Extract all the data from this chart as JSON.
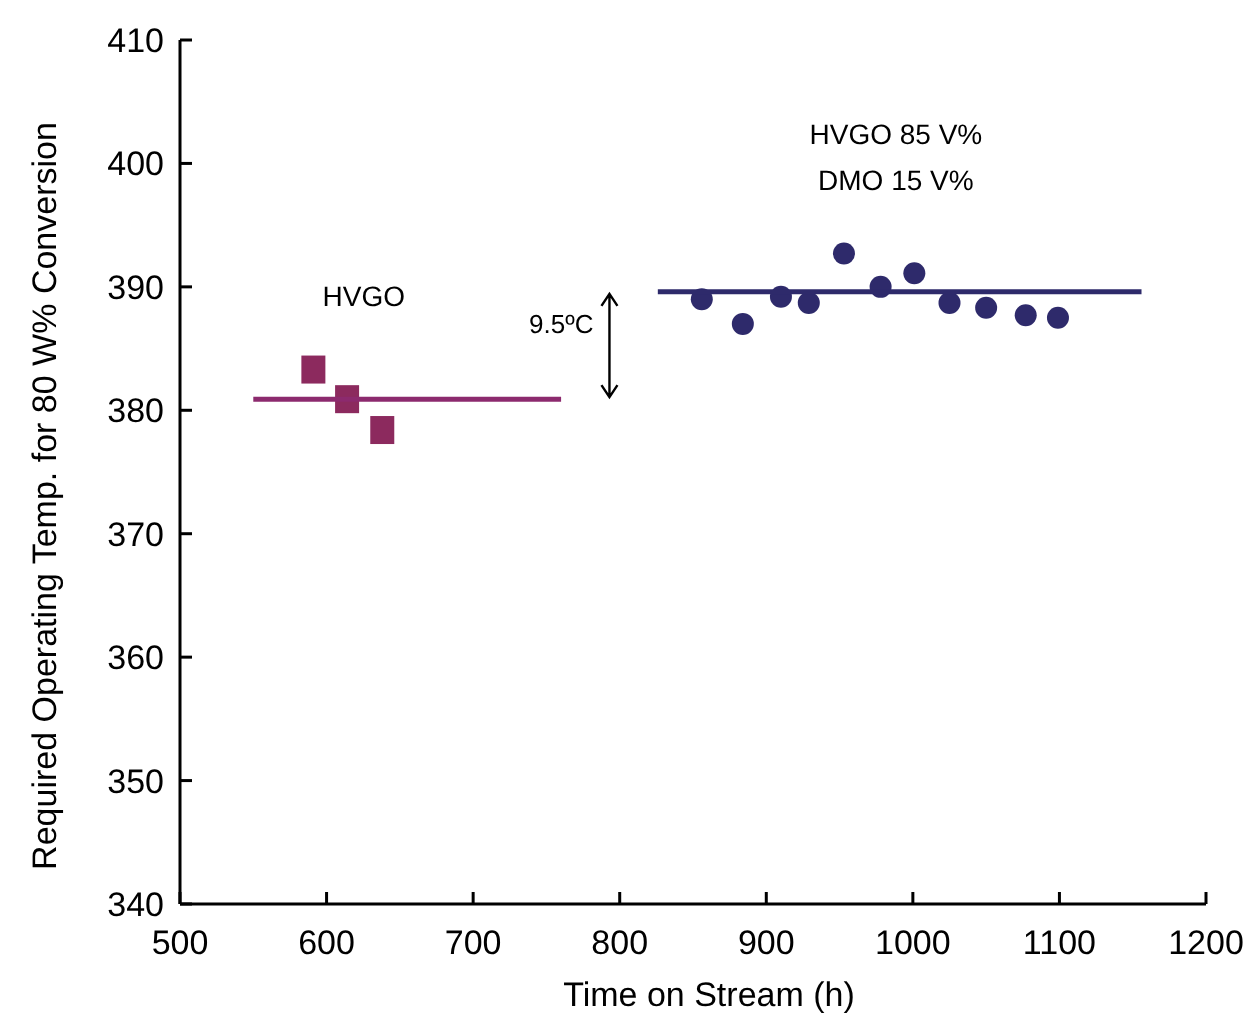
{
  "chart_data": {
    "type": "scatter",
    "xlabel": "Time on Stream (h)",
    "ylabel": "Required Operating Temp. for 80 W% Conversion",
    "xlim": [
      500,
      1200
    ],
    "ylim": [
      340,
      410
    ],
    "xticks": [
      500,
      600,
      700,
      800,
      900,
      1000,
      1100,
      1200
    ],
    "yticks": [
      340,
      350,
      360,
      370,
      380,
      390,
      400,
      410
    ],
    "grid": false,
    "series": [
      {
        "name": "HVGO",
        "marker": "square",
        "color": "#8c2a5e",
        "x": [
          591,
          614,
          638
        ],
        "values": [
          383.3,
          380.9,
          378.4
        ]
      },
      {
        "type": "line",
        "marker": "none",
        "color": "#8c2a6e",
        "x": [
          550,
          760
        ],
        "values": [
          380.9,
          380.9
        ]
      },
      {
        "name": "HVGO 85 V%\nDMO 15 V%",
        "marker": "circle",
        "color": "#2e2a6b",
        "x": [
          856,
          884,
          910,
          929,
          953,
          978,
          1001,
          1025,
          1050,
          1077,
          1099
        ],
        "values": [
          389.0,
          387.0,
          389.2,
          388.7,
          392.7,
          390.0,
          391.1,
          388.7,
          388.3,
          387.7,
          387.5
        ]
      },
      {
        "type": "line",
        "marker": "none",
        "color": "#2e2a6b",
        "x": [
          826,
          1156
        ],
        "values": [
          389.6,
          389.6
        ]
      }
    ],
    "annotations": [
      "9.5ºC"
    ]
  }
}
